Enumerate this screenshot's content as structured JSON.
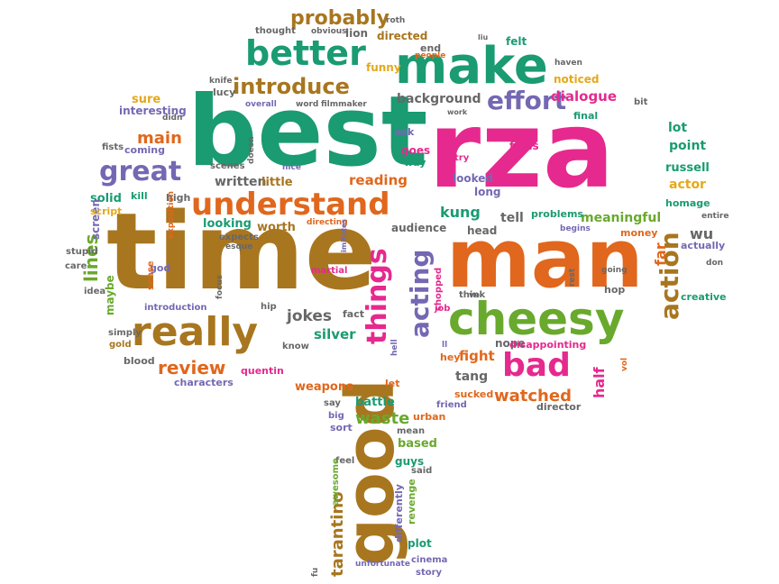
{
  "palette": {
    "green": "#1a9b72",
    "pink": "#e6298e",
    "orange": "#e0671d",
    "brown": "#a8761f",
    "purple": "#7468b3",
    "lime": "#69a92d",
    "gold": "#e4a91a",
    "gray": "#676767"
  },
  "words": [
    {
      "text": "best",
      "color": "green"
    },
    {
      "text": "rza",
      "color": "pink"
    },
    {
      "text": "time",
      "color": "brown"
    },
    {
      "text": "man",
      "color": "orange"
    },
    {
      "text": "good",
      "color": "brown"
    },
    {
      "text": "make",
      "color": "green"
    },
    {
      "text": "cheesy",
      "color": "lime"
    },
    {
      "text": "really",
      "color": "brown"
    },
    {
      "text": "understand",
      "color": "orange"
    },
    {
      "text": "better",
      "color": "green"
    },
    {
      "text": "great",
      "color": "purple"
    },
    {
      "text": "bad",
      "color": "pink"
    },
    {
      "text": "things",
      "color": "pink"
    },
    {
      "text": "acting",
      "color": "purple"
    },
    {
      "text": "action",
      "color": "brown"
    },
    {
      "text": "effort",
      "color": "purple"
    },
    {
      "text": "introduce",
      "color": "brown"
    },
    {
      "text": "probably",
      "color": "brown"
    },
    {
      "text": "lines",
      "color": "lime"
    },
    {
      "text": "watched",
      "color": "orange"
    },
    {
      "text": "review",
      "color": "orange"
    },
    {
      "text": "main",
      "color": "orange"
    },
    {
      "text": "tarantino",
      "color": "brown"
    },
    {
      "text": "waste",
      "color": "lime"
    },
    {
      "text": "dialogue",
      "color": "pink"
    },
    {
      "text": "kung",
      "color": "green"
    },
    {
      "text": "fight",
      "color": "orange"
    },
    {
      "text": "jokes",
      "color": "gray"
    },
    {
      "text": "background",
      "color": "gray"
    },
    {
      "text": "reading",
      "color": "orange"
    },
    {
      "text": "meaningful",
      "color": "lime"
    },
    {
      "text": "half",
      "color": "pink"
    },
    {
      "text": "far",
      "color": "orange"
    },
    {
      "text": "wu",
      "color": "gray"
    },
    {
      "text": "written",
      "color": "gray"
    },
    {
      "text": "silver",
      "color": "green"
    },
    {
      "text": "tang",
      "color": "gray"
    },
    {
      "text": "looking",
      "color": "green"
    },
    {
      "text": "worth",
      "color": "brown"
    },
    {
      "text": "little",
      "color": "brown"
    },
    {
      "text": "sure",
      "color": "gold"
    },
    {
      "text": "interesting",
      "color": "purple"
    },
    {
      "text": "lucy",
      "color": "gray"
    },
    {
      "text": "tell",
      "color": "gray"
    },
    {
      "text": "solid",
      "color": "green"
    },
    {
      "text": "actor",
      "color": "gold"
    },
    {
      "text": "lot",
      "color": "green"
    },
    {
      "text": "point",
      "color": "green"
    },
    {
      "text": "russell",
      "color": "green"
    },
    {
      "text": "weapons",
      "color": "orange"
    },
    {
      "text": "battle",
      "color": "green"
    },
    {
      "text": "based",
      "color": "lime"
    },
    {
      "text": "guys",
      "color": "green"
    },
    {
      "text": "plot",
      "color": "green"
    },
    {
      "text": "revenge",
      "color": "lime"
    },
    {
      "text": "differently",
      "color": "purple"
    },
    {
      "text": "audience",
      "color": "gray"
    },
    {
      "text": "head",
      "color": "gray"
    },
    {
      "text": "looked",
      "color": "purple"
    },
    {
      "text": "long",
      "color": "purple"
    },
    {
      "text": "films",
      "color": "pink"
    },
    {
      "text": "nope",
      "color": "gray"
    },
    {
      "text": "hey",
      "color": "orange"
    },
    {
      "text": "sucked",
      "color": "orange"
    },
    {
      "text": "director",
      "color": "gray"
    },
    {
      "text": "disappointing",
      "color": "pink"
    },
    {
      "text": "problems",
      "color": "green"
    },
    {
      "text": "money",
      "color": "orange"
    },
    {
      "text": "homage",
      "color": "green"
    },
    {
      "text": "actually",
      "color": "purple"
    },
    {
      "text": "creative",
      "color": "green"
    },
    {
      "text": "quentin",
      "color": "pink"
    },
    {
      "text": "characters",
      "color": "purple"
    },
    {
      "text": "blood",
      "color": "gray"
    },
    {
      "text": "maybe",
      "color": "lime"
    },
    {
      "text": "screen",
      "color": "purple"
    },
    {
      "text": "script",
      "color": "gold"
    },
    {
      "text": "kill",
      "color": "green"
    },
    {
      "text": "high",
      "color": "gray"
    },
    {
      "text": "god",
      "color": "purple"
    },
    {
      "text": "stupid",
      "color": "gray"
    },
    {
      "text": "care",
      "color": "gray"
    },
    {
      "text": "idea",
      "color": "gray"
    },
    {
      "text": "lion",
      "color": "gray"
    },
    {
      "text": "directed",
      "color": "brown"
    },
    {
      "text": "felt",
      "color": "green"
    },
    {
      "text": "end",
      "color": "gray"
    },
    {
      "text": "funny",
      "color": "gold"
    },
    {
      "text": "noticed",
      "color": "gold"
    },
    {
      "text": "ask",
      "color": "purple"
    },
    {
      "text": "goes",
      "color": "pink"
    },
    {
      "text": "way",
      "color": "green"
    },
    {
      "text": "final",
      "color": "green"
    },
    {
      "text": "bit",
      "color": "gray"
    },
    {
      "text": "fists",
      "color": "gray"
    },
    {
      "text": "coming",
      "color": "purple"
    },
    {
      "text": "scenes",
      "color": "gray"
    },
    {
      "text": "fact",
      "color": "gray"
    },
    {
      "text": "hip",
      "color": "gray"
    },
    {
      "text": "hop",
      "color": "gray"
    },
    {
      "text": "know",
      "color": "gray"
    },
    {
      "text": "martial",
      "color": "pink"
    },
    {
      "text": "chopped",
      "color": "pink"
    },
    {
      "text": "think",
      "color": "gray"
    },
    {
      "text": "job",
      "color": "pink"
    },
    {
      "text": "let",
      "color": "orange"
    },
    {
      "text": "say",
      "color": "gray"
    },
    {
      "text": "big",
      "color": "purple"
    },
    {
      "text": "sort",
      "color": "purple"
    },
    {
      "text": "urban",
      "color": "orange"
    },
    {
      "text": "mean",
      "color": "gray"
    },
    {
      "text": "said",
      "color": "gray"
    },
    {
      "text": "friend",
      "color": "purple"
    },
    {
      "text": "feel",
      "color": "gray"
    },
    {
      "text": "awesome",
      "color": "lime"
    },
    {
      "text": "cinema",
      "color": "purple"
    },
    {
      "text": "story",
      "color": "purple"
    },
    {
      "text": "unfortunate",
      "color": "purple"
    },
    {
      "text": "simply",
      "color": "gray"
    },
    {
      "text": "gold",
      "color": "brown"
    },
    {
      "text": "introduction",
      "color": "purple"
    },
    {
      "text": "sense",
      "color": "orange"
    },
    {
      "text": "expects",
      "color": "gray"
    },
    {
      "text": "directing",
      "color": "orange"
    },
    {
      "text": "thought",
      "color": "gray"
    },
    {
      "text": "obvious",
      "color": "gray"
    },
    {
      "text": "people",
      "color": "orange"
    },
    {
      "text": "knife",
      "color": "gray"
    },
    {
      "text": "overall",
      "color": "purple"
    },
    {
      "text": "word",
      "color": "gray"
    },
    {
      "text": "filmmaker",
      "color": "gray"
    },
    {
      "text": "nice",
      "color": "purple"
    },
    {
      "text": "try",
      "color": "pink"
    },
    {
      "text": "begins",
      "color": "purple"
    },
    {
      "text": "entire",
      "color": "gray"
    },
    {
      "text": "don",
      "color": "gray"
    },
    {
      "text": "going",
      "color": "gray"
    },
    {
      "text": "rest",
      "color": "gray"
    },
    {
      "text": "vol",
      "color": "orange"
    },
    {
      "text": "didn",
      "color": "gray"
    },
    {
      "text": "doesn",
      "color": "gray"
    },
    {
      "text": "ll",
      "color": "purple"
    },
    {
      "text": "ve",
      "color": "gray"
    },
    {
      "text": "haven",
      "color": "gray"
    },
    {
      "text": "work",
      "color": "gray"
    },
    {
      "text": "roth",
      "color": "gray"
    },
    {
      "text": "liu",
      "color": "gray"
    },
    {
      "text": "fu",
      "color": "gray"
    },
    {
      "text": "esque",
      "color": "gray"
    },
    {
      "text": "focus",
      "color": "gray"
    },
    {
      "text": "exposition",
      "color": "orange"
    },
    {
      "text": "imitates",
      "color": "purple"
    },
    {
      "text": "hell",
      "color": "purple"
    }
  ]
}
